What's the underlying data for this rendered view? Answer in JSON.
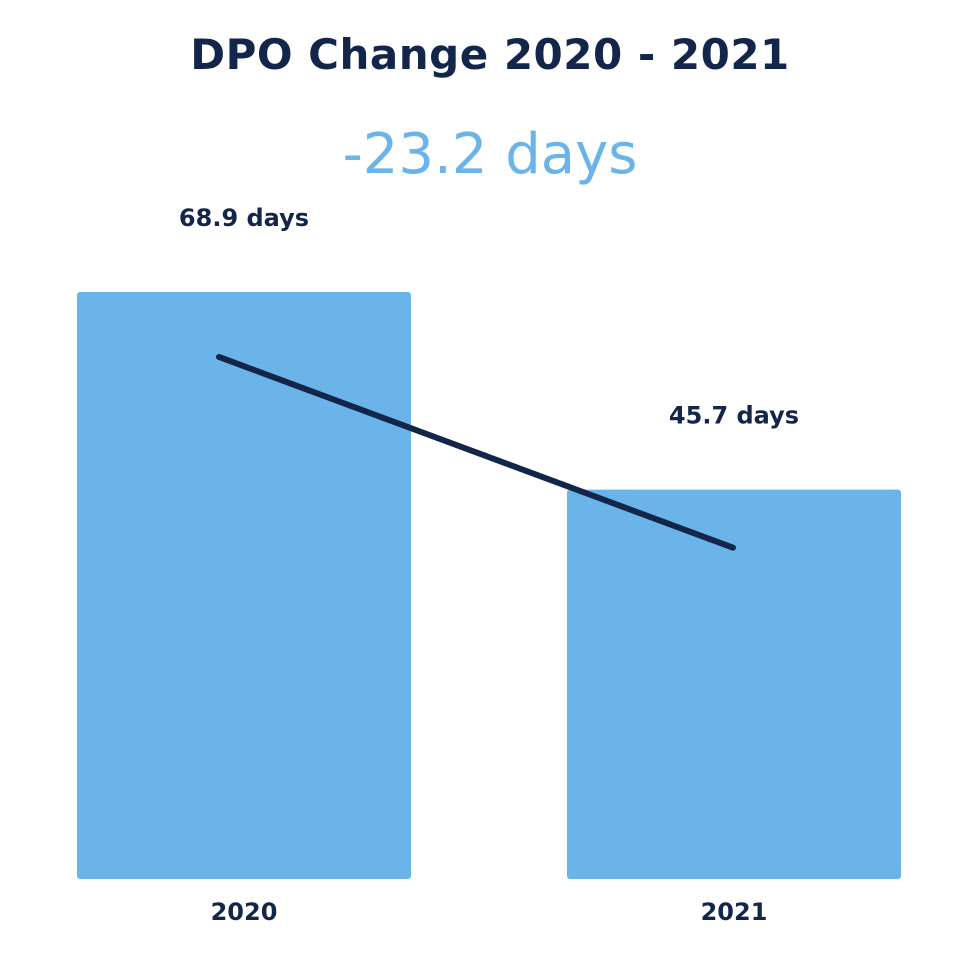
{
  "header": {
    "title": "DPO Change 2020 - 2021",
    "change_label": "-23.2 days"
  },
  "colors": {
    "bar": "#6ab4ea",
    "trend_line": "#13264a",
    "title": "#13264a",
    "change_label": "#6ab4ea"
  },
  "chart_data": {
    "type": "bar",
    "title": "DPO Change 2020 - 2021",
    "categories": [
      "2020",
      "2021"
    ],
    "values": [
      68.9,
      45.7
    ],
    "value_labels": [
      "68.9 days",
      "45.7 days"
    ],
    "unit": "days",
    "annotation": "-23.2 days",
    "trend_line": true,
    "grid": false,
    "legend": "none",
    "xlabel": "",
    "ylabel": ""
  }
}
